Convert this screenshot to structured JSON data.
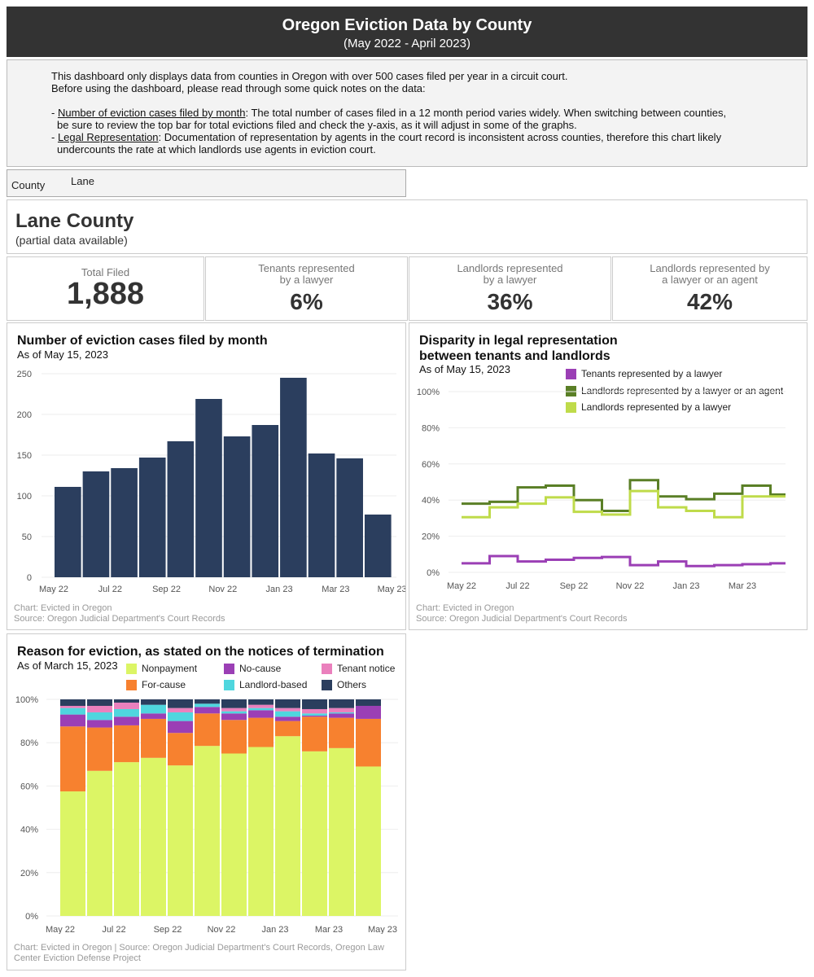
{
  "header": {
    "title": "Oregon Eviction Data by County",
    "subtitle": "(May 2022 - April 2023)"
  },
  "notes": {
    "line1": "This dashboard only displays data from counties in Oregon with over 500 cases filed per year in a circuit court.",
    "line2": "Before using the dashboard, please read through some quick notes on the data:",
    "note1_prefix": "- ",
    "note1_link": "Number of eviction cases filed by month",
    "note1_text": ": The total number of cases filed in a 12 month period varies widely. When switching between counties,",
    "note1_cont": "be sure to review the top bar for total evictions filed and check the y-axis, as it will adjust in some of the graphs.",
    "note2_prefix": "- ",
    "note2_link": "Legal Representation",
    "note2_text": ": Documentation of representation by agents in the court record is inconsistent across counties, therefore this chart likely",
    "note2_cont": "undercounts the rate at which landlords use agents in eviction court."
  },
  "filter": {
    "label": "County",
    "value": "Lane"
  },
  "county": {
    "name": "Lane County",
    "note": "(partial data available)"
  },
  "stats": [
    {
      "label1": "Total Filed",
      "label2": "",
      "value": "1,888"
    },
    {
      "label1": "Tenants represented",
      "label2": "by a lawyer",
      "value": "6%"
    },
    {
      "label1": "Landlords represented",
      "label2": "by a lawyer",
      "value": "36%"
    },
    {
      "label1": "Landlords represented by",
      "label2": "a lawyer or an agent",
      "value": "42%"
    }
  ],
  "colors": {
    "bar": "#2b3e5e",
    "tenant": "#9b3fb5",
    "lawyer_agent": "#5a7f26",
    "lawyer": "#bfdb4a",
    "nonpayment": "#dcf565",
    "for_cause": "#f7812f",
    "no_cause": "#9b3fb5",
    "landlord_based": "#4fd6de",
    "tenant_notice": "#ea80bd",
    "others": "#2b3e5e"
  },
  "panel1": {
    "title": "Number of eviction cases filed by month",
    "subtitle": "As of May 15, 2023",
    "footer1": "Chart: Evicted in Oregon",
    "footer2": "Source: Oregon Judicial Department's Court Records"
  },
  "panel2": {
    "title1": "Disparity in legal representation",
    "title2": "between tenants and landlords",
    "subtitle": "As of May 15, 2023",
    "footer1": "Chart: Evicted in Oregon",
    "footer2": "Source: Oregon Judicial Department's Court Records"
  },
  "panel3": {
    "title": "Reason for eviction, as stated on the notices of termination",
    "subtitle": "As of March 15, 2023",
    "footer1": "Chart: Evicted in Oregon | Source: Oregon Judicial Department's Court Records, Oregon Law",
    "footer2": "Center Eviction Defense Project"
  },
  "chart_data": [
    {
      "type": "bar",
      "title": "Number of eviction cases filed by month",
      "categories": [
        "May 22",
        "Jun 22",
        "Jul 22",
        "Aug 22",
        "Sep 22",
        "Oct 22",
        "Nov 22",
        "Dec 22",
        "Jan 23",
        "Feb 23",
        "Mar 23",
        "Apr 23"
      ],
      "values": [
        111,
        130,
        134,
        147,
        167,
        219,
        173,
        187,
        245,
        152,
        146,
        77
      ],
      "ylim": [
        0,
        250
      ],
      "yticks": [
        0,
        50,
        100,
        150,
        200,
        250
      ],
      "xticks": [
        "May 22",
        "Jul 22",
        "Sep 22",
        "Nov 22",
        "Jan 23",
        "Mar 23",
        "May 23"
      ]
    },
    {
      "type": "line",
      "title": "Disparity in legal representation between tenants and landlords",
      "categories": [
        "May 22",
        "Jun 22",
        "Jul 22",
        "Aug 22",
        "Sep 22",
        "Oct 22",
        "Nov 22",
        "Dec 22",
        "Jan 23",
        "Feb 23",
        "Mar 23",
        "Apr 23"
      ],
      "series": [
        {
          "name": "Tenants represented by a lawyer",
          "color": "#9b3fb5",
          "values": [
            5,
            9,
            6,
            7,
            8,
            8.5,
            4,
            6,
            3.5,
            4,
            4.5,
            5
          ]
        },
        {
          "name": "Landlords represented by a lawyer or an agent",
          "color": "#5a7f26",
          "values": [
            38,
            39,
            47,
            48,
            40,
            34,
            51,
            42,
            40.5,
            43.5,
            48,
            43
          ]
        },
        {
          "name": "Landlords represented by a lawyer",
          "color": "#bfdb4a",
          "values": [
            30.5,
            36,
            38,
            41.5,
            33.5,
            32,
            45,
            36,
            34,
            30.5,
            42,
            42
          ]
        }
      ],
      "ylim": [
        0,
        100
      ],
      "yticks": [
        "0%",
        "20%",
        "40%",
        "60%",
        "80%",
        "100%"
      ],
      "xticks": [
        "May 22",
        "Jul 22",
        "Sep 22",
        "Nov 22",
        "Jan 23",
        "Mar 23"
      ]
    },
    {
      "type": "bar",
      "stacked": true,
      "title": "Reason for eviction, as stated on the notices of termination",
      "categories": [
        "May 22",
        "Jun 22",
        "Jul 22",
        "Aug 22",
        "Sep 22",
        "Oct 22",
        "Nov 22",
        "Dec 22",
        "Jan 23",
        "Feb 23",
        "Mar 23",
        "Apr 23"
      ],
      "series": [
        {
          "name": "Nonpayment",
          "color": "#dcf565",
          "values": [
            57.5,
            67,
            71,
            73,
            69.5,
            78.5,
            75,
            78,
            83,
            76,
            77.5,
            69
          ]
        },
        {
          "name": "For-cause",
          "color": "#f7812f",
          "values": [
            30,
            20,
            17,
            18,
            15,
            15,
            15.5,
            13.5,
            7,
            16,
            14,
            22
          ]
        },
        {
          "name": "No-cause",
          "color": "#9b3fb5",
          "values": [
            5.5,
            3.5,
            4,
            2.5,
            5.5,
            3,
            3,
            3.5,
            2,
            0.5,
            2,
            6
          ]
        },
        {
          "name": "Landlord-based",
          "color": "#4fd6de",
          "values": [
            3,
            3.5,
            3.5,
            4,
            4,
            1.5,
            1,
            1,
            2.5,
            1,
            0.5,
            0
          ]
        },
        {
          "name": "Tenant notice",
          "color": "#ea80bd",
          "values": [
            1,
            3,
            3,
            0,
            2,
            0,
            1.5,
            1.5,
            1.5,
            2,
            2,
            0
          ]
        },
        {
          "name": "Others",
          "color": "#2b3e5e",
          "values": [
            3,
            3,
            1.5,
            2.5,
            4,
            2,
            4,
            2.5,
            4,
            4.5,
            4,
            3
          ]
        }
      ],
      "ylim": [
        0,
        100
      ],
      "yticks": [
        "0%",
        "20%",
        "40%",
        "60%",
        "80%",
        "100%"
      ],
      "xticks": [
        "May 22",
        "Jul 22",
        "Sep 22",
        "Nov 22",
        "Jan 23",
        "Mar 23",
        "May 23"
      ]
    }
  ]
}
